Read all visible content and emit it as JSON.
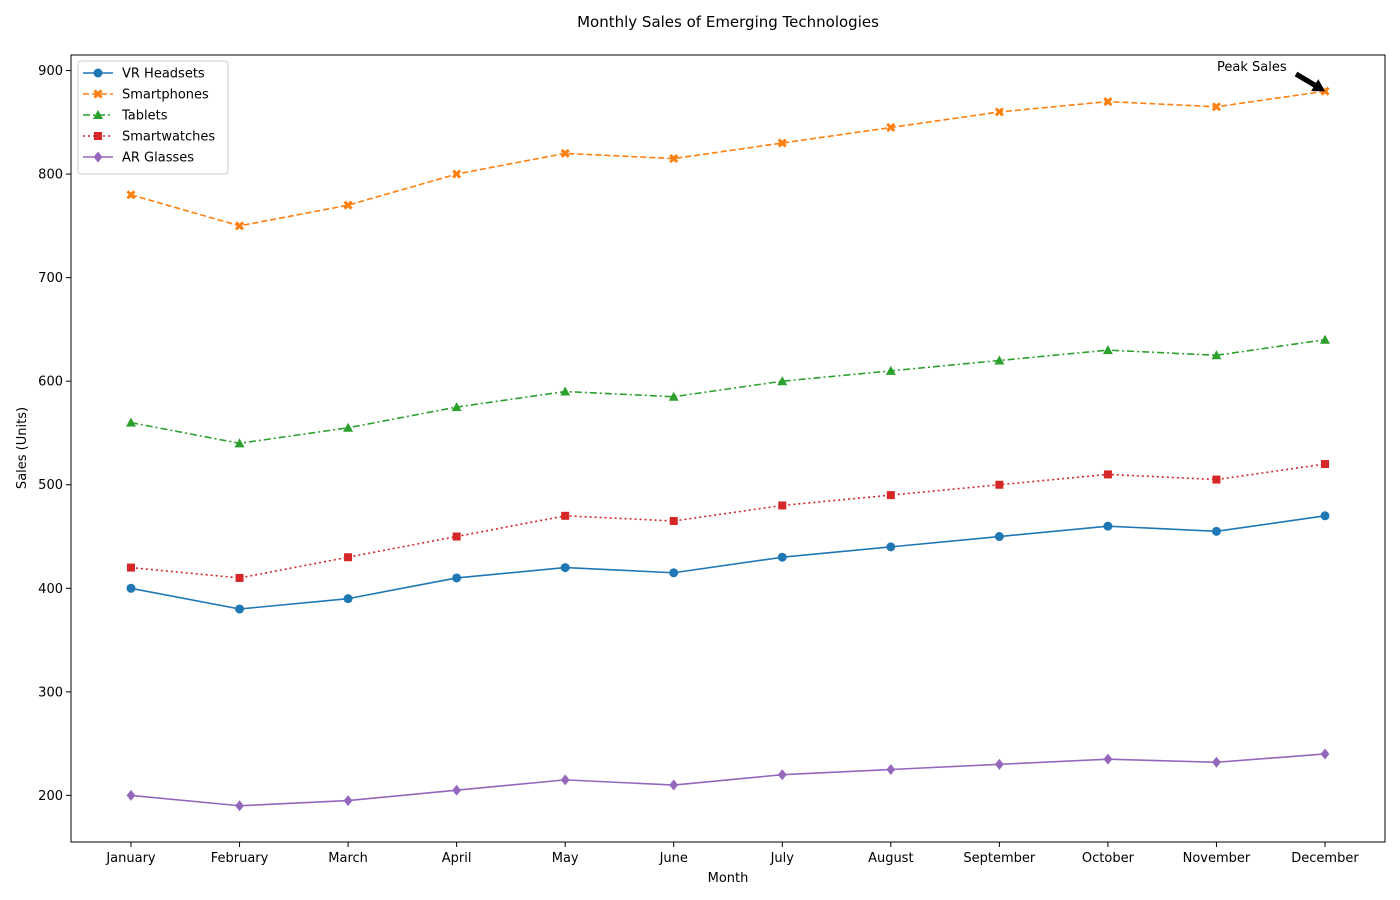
{
  "chart_data": {
    "type": "line",
    "title": "Monthly Sales of Emerging Technologies",
    "xlabel": "Month",
    "ylabel": "Sales (Units)",
    "categories": [
      "January",
      "February",
      "March",
      "April",
      "May",
      "June",
      "July",
      "August",
      "September",
      "October",
      "November",
      "December"
    ],
    "ylim": [
      155,
      915
    ],
    "yticks": [
      200,
      300,
      400,
      500,
      600,
      700,
      800,
      900
    ],
    "grid": false,
    "legend_position": "top-left",
    "series": [
      {
        "name": "VR Headsets",
        "color": "#1f77b4",
        "marker": "circle",
        "linestyle": "solid",
        "values": [
          400,
          380,
          390,
          410,
          420,
          415,
          430,
          440,
          450,
          460,
          455,
          470
        ]
      },
      {
        "name": "Smartphones",
        "color": "#ff7f0e",
        "marker": "x",
        "linestyle": "dashed",
        "values": [
          780,
          750,
          770,
          800,
          820,
          815,
          830,
          845,
          860,
          870,
          865,
          880
        ]
      },
      {
        "name": "Tablets",
        "color": "#2ca02c",
        "marker": "triangle",
        "linestyle": "dashdot",
        "values": [
          560,
          540,
          555,
          575,
          590,
          585,
          600,
          610,
          620,
          630,
          625,
          640
        ]
      },
      {
        "name": "Smartwatches",
        "color": "#d62728",
        "marker": "square",
        "linestyle": "dotted",
        "values": [
          420,
          410,
          430,
          450,
          470,
          465,
          480,
          490,
          500,
          510,
          505,
          520
        ]
      },
      {
        "name": "AR Glasses",
        "color": "#9467bd",
        "marker": "diamond",
        "linestyle": "solid",
        "values": [
          200,
          190,
          195,
          205,
          215,
          210,
          220,
          225,
          230,
          235,
          232,
          240
        ]
      }
    ],
    "annotations": [
      {
        "text": "Peak Sales",
        "x": "December",
        "y": 880
      }
    ]
  }
}
